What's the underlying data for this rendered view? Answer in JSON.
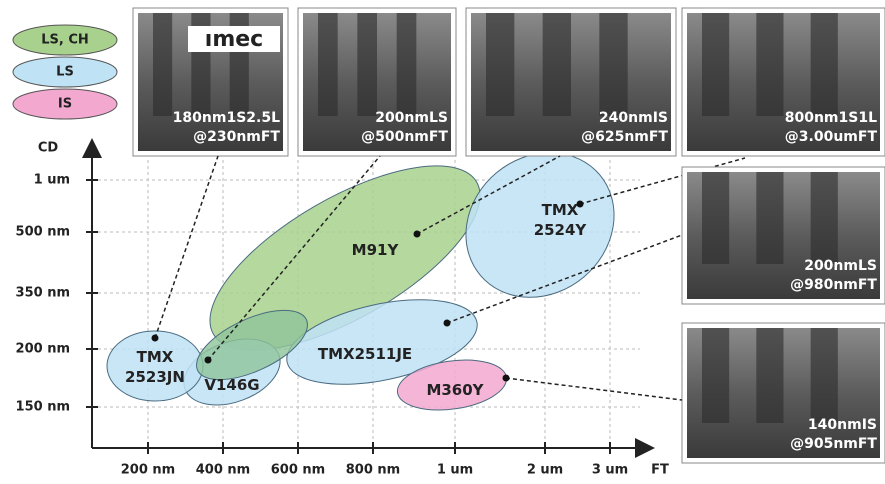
{
  "legend": [
    {
      "label": "LS, CH",
      "color": "#a8d18d"
    },
    {
      "label": "LS",
      "color": "#bfe2f5"
    },
    {
      "label": "IS",
      "color": "#f3a8d0"
    }
  ],
  "y_axis": {
    "label": "CD",
    "ticks": [
      "1 um",
      "500 nm",
      "350 nm",
      "200 nm",
      "150 nm"
    ]
  },
  "x_axis": {
    "label": "FT",
    "ticks": [
      "200 nm",
      "400 nm",
      "600 nm",
      "800 nm",
      "1 um",
      "2 um",
      "3 um"
    ]
  },
  "regions": [
    {
      "lines": [
        "M91Y"
      ],
      "color": "#a8d18d"
    },
    {
      "lines": [
        "TMX",
        "2524Y"
      ],
      "color": "#bfe2f5"
    },
    {
      "lines": [
        "TMX2511JE"
      ],
      "color": "#bfe2f5"
    },
    {
      "lines": [
        "V146G"
      ],
      "color": "#bfe2f5"
    },
    {
      "lines": [
        "TMX",
        "2523JN"
      ],
      "color": "#bfe2f5"
    },
    {
      "lines": [
        "M360Y"
      ],
      "color": "#f3a8d0"
    }
  ],
  "micrographs": [
    {
      "lines": [
        "180nm1S2.5L",
        "@230nmFT"
      ]
    },
    {
      "lines": [
        "200nmLS",
        "@500nmFT"
      ]
    },
    {
      "lines": [
        "240nmIS",
        "@625nmFT"
      ]
    },
    {
      "lines": [
        "800nm1S1L",
        "@3.00umFT"
      ]
    },
    {
      "lines": [
        "200nmLS",
        "@980nmFT"
      ]
    },
    {
      "lines": [
        "140nmIS",
        "@905nmFT"
      ]
    }
  ],
  "logo": "ımec"
}
